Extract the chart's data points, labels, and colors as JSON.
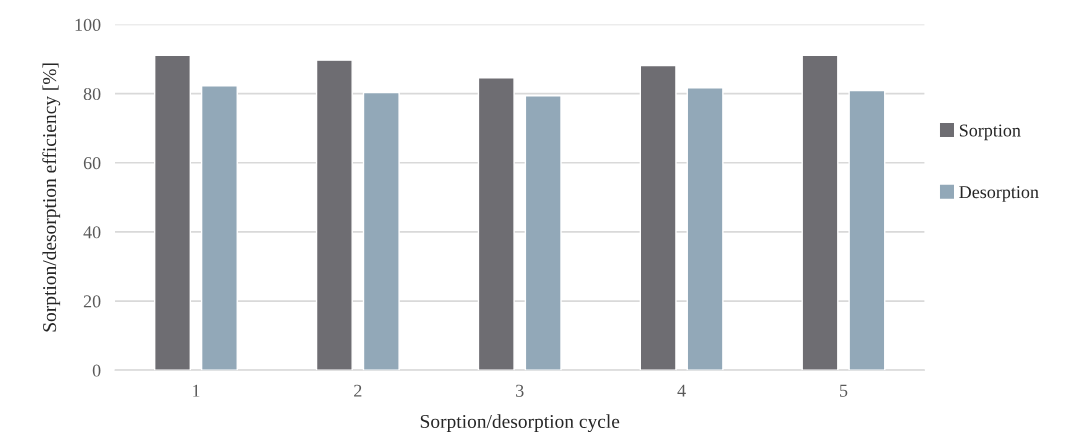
{
  "chart_data": {
    "type": "bar",
    "xlabel": "Sorption/desorption cycle",
    "ylabel": "Sorption/desorption efficiency [%]",
    "categories": [
      "1",
      "2",
      "3",
      "4",
      "5"
    ],
    "series": [
      {
        "name": "Sorption",
        "color": "#6e6d72",
        "values": [
          91.1,
          89.7,
          84.6,
          88.1,
          91.1
        ]
      },
      {
        "name": "Desorption",
        "color": "#92a8b8",
        "values": [
          82.3,
          80.3,
          79.4,
          81.7,
          80.9
        ]
      }
    ],
    "ylim": [
      0,
      100
    ],
    "yticks": [
      0,
      20,
      40,
      60,
      80,
      100
    ],
    "grid": "y",
    "legend": "right"
  }
}
